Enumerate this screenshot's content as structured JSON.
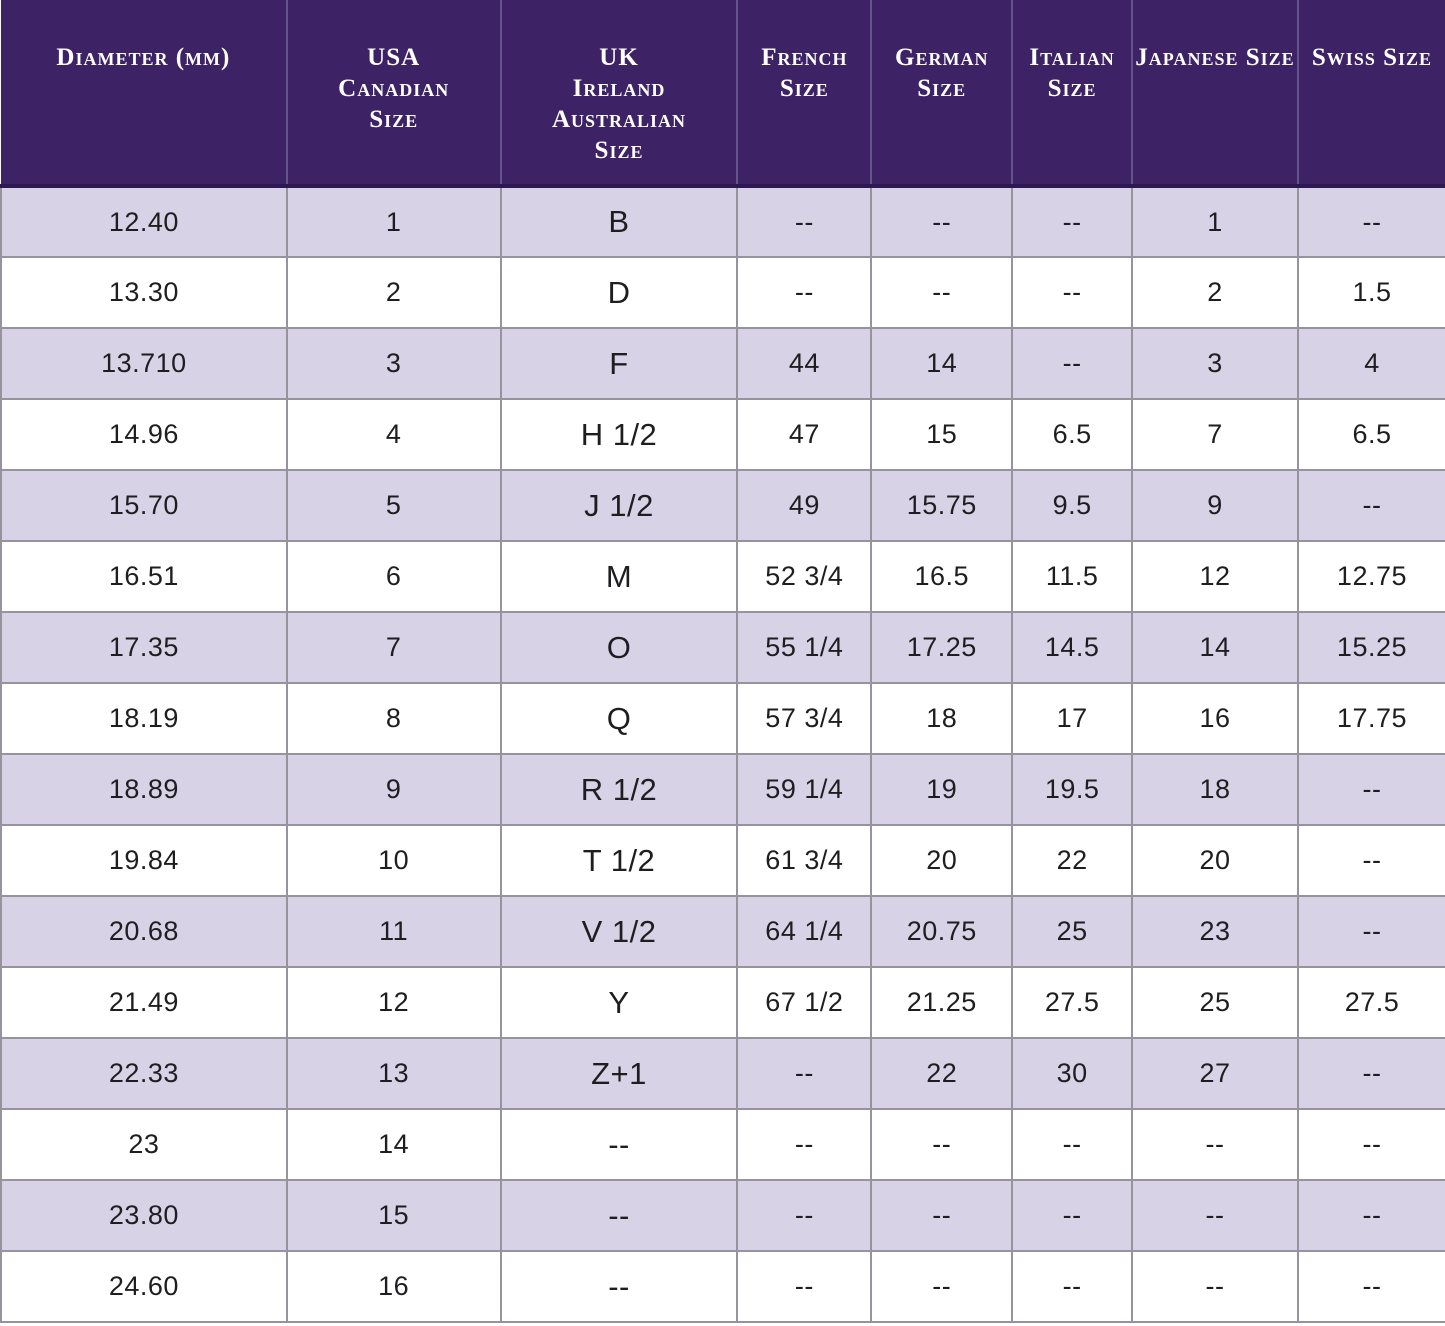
{
  "colors": {
    "header_bg": "#3d2366",
    "header_text": "#ffffff",
    "header_divider": "#63548c",
    "header_underline": "#2c1950",
    "row_alt": "#d8d2e7",
    "row_default": "#ffffff",
    "grid": "#97939d",
    "cell_text": "#1e1e20",
    "page_bg": "#ffffff"
  },
  "chart_data": {
    "type": "table",
    "legend_position": "none",
    "grid": true,
    "columns": [
      {
        "label": "Diameter (mm)",
        "width_pct": 19.79
      },
      {
        "label": "USA\nCanadian\nSize",
        "width_pct": 14.81
      },
      {
        "label": "UK\nIreland\nAustralian\nSize",
        "width_pct": 16.4
      },
      {
        "label": "French\nSize",
        "width_pct": 9.27
      },
      {
        "label": "German\nSize",
        "width_pct": 9.76
      },
      {
        "label": "Italian\nSize",
        "width_pct": 8.3
      },
      {
        "label": "Japanese Size",
        "width_pct": 11.49
      },
      {
        "label": "Swiss Size",
        "width_pct": 10.18
      }
    ],
    "rows": [
      [
        "12.40",
        "1",
        "B",
        "--",
        "--",
        "--",
        "1",
        "--"
      ],
      [
        "13.30",
        "2",
        "D",
        "--",
        "--",
        "--",
        "2",
        "1.5"
      ],
      [
        "13.710",
        "3",
        "F",
        "44",
        "14",
        "--",
        "3",
        "4"
      ],
      [
        "14.96",
        "4",
        "H 1/2",
        "47",
        "15",
        "6.5",
        "7",
        "6.5"
      ],
      [
        "15.70",
        "5",
        "J 1/2",
        "49",
        "15.75",
        "9.5",
        "9",
        "--"
      ],
      [
        "16.51",
        "6",
        "M",
        "52 3/4",
        "16.5",
        "11.5",
        "12",
        "12.75"
      ],
      [
        "17.35",
        "7",
        "O",
        "55 1/4",
        "17.25",
        "14.5",
        "14",
        "15.25"
      ],
      [
        "18.19",
        "8",
        "Q",
        "57 3/4",
        "18",
        "17",
        "16",
        "17.75"
      ],
      [
        "18.89",
        "9",
        "R 1/2",
        "59 1/4",
        "19",
        "19.5",
        "18",
        "--"
      ],
      [
        "19.84",
        "10",
        "T 1/2",
        "61 3/4",
        "20",
        "22",
        "20",
        "--"
      ],
      [
        "20.68",
        "11",
        "V 1/2",
        "64 1/4",
        "20.75",
        "25",
        "23",
        "--"
      ],
      [
        "21.49",
        "12",
        "Y",
        "67 1/2",
        "21.25",
        "27.5",
        "25",
        "27.5"
      ],
      [
        "22.33",
        "13",
        "Z+1",
        "--",
        "22",
        "30",
        "27",
        "--"
      ],
      [
        "23",
        "14",
        "--",
        "--",
        "--",
        "--",
        "--",
        "--"
      ],
      [
        "23.80",
        "15",
        "--",
        "--",
        "--",
        "--",
        "--",
        "--"
      ],
      [
        "24.60",
        "16",
        "--",
        "--",
        "--",
        "--",
        "--",
        "--"
      ]
    ]
  }
}
